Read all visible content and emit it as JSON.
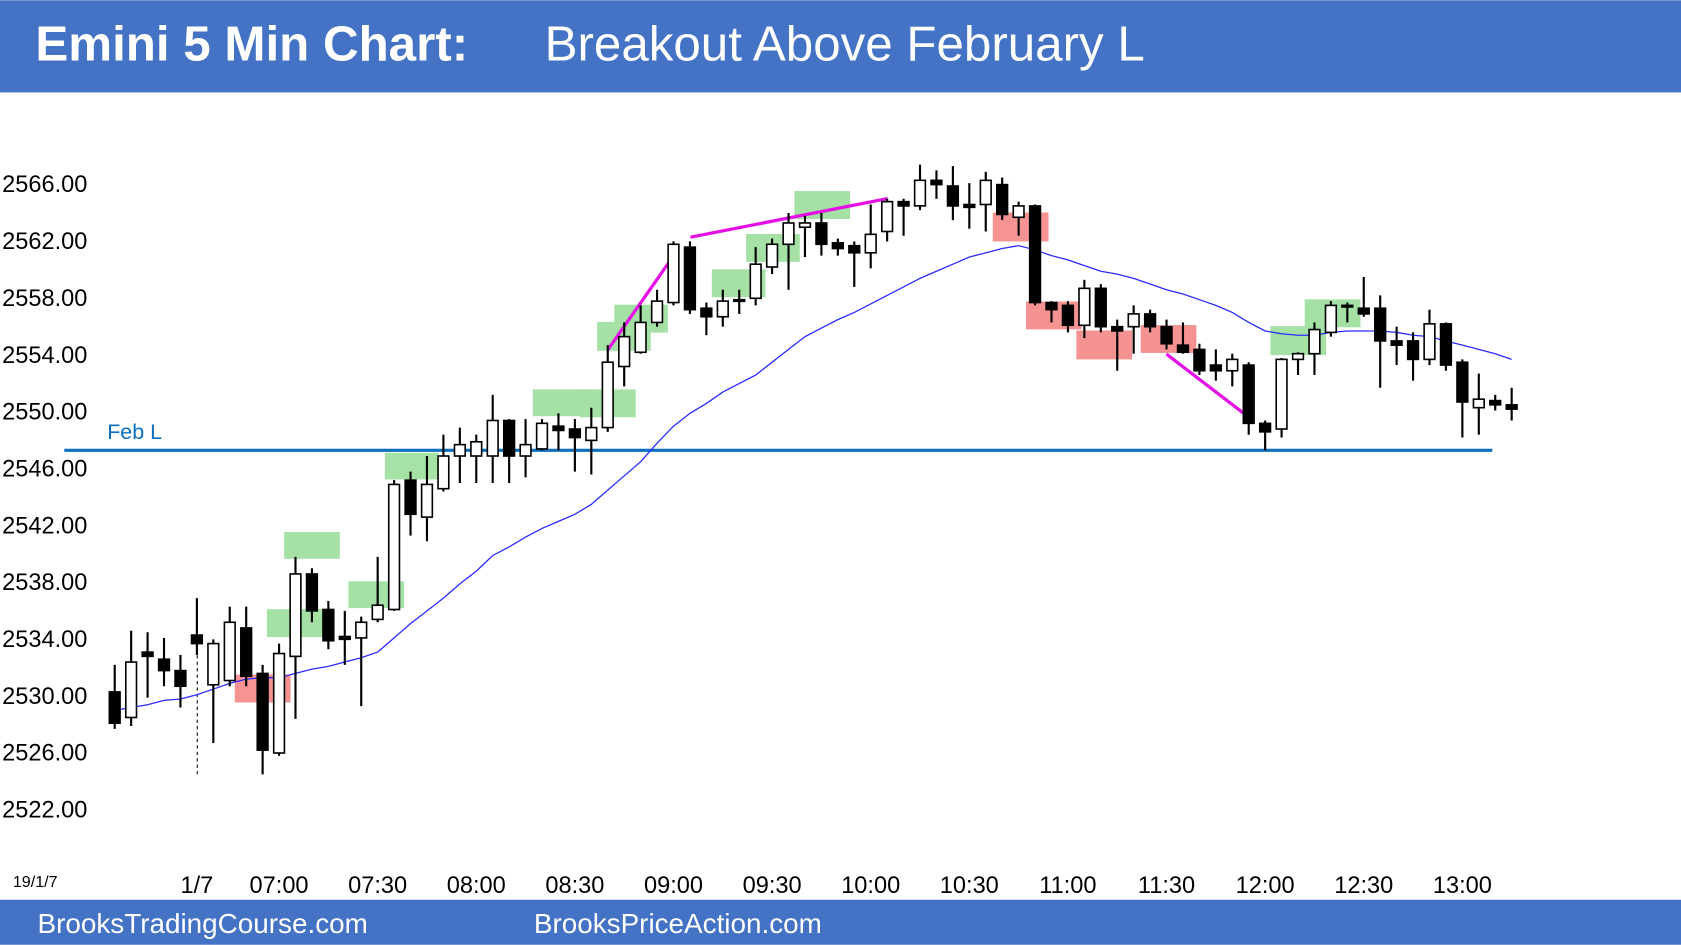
{
  "chart_data": {
    "type": "candlestick",
    "title": "Emini 5 Min Chart:",
    "subtitle": "Breakout Above February L",
    "date_label": "19/1/7",
    "footer": [
      "BrooksTradingCourse.com",
      "BrooksPriceAction.com"
    ],
    "categories": [
      null,
      null,
      null,
      null,
      null,
      "1/7",
      null,
      null,
      null,
      null,
      "07:00",
      null,
      null,
      null,
      null,
      null,
      "07:30",
      null,
      null,
      null,
      null,
      null,
      "08:00",
      null,
      null,
      null,
      null,
      null,
      "08:30",
      null,
      null,
      null,
      null,
      null,
      "09:00",
      null,
      null,
      null,
      null,
      null,
      "09:30",
      null,
      null,
      null,
      null,
      null,
      "10:00",
      null,
      null,
      null,
      null,
      null,
      "10:30",
      null,
      null,
      null,
      null,
      null,
      "11:00",
      null,
      null,
      null,
      null,
      null,
      "11:30",
      null,
      null,
      null,
      null,
      null,
      "12:00",
      null,
      null,
      null,
      null,
      null,
      "12:30",
      null,
      null,
      null,
      null,
      null,
      "13:00",
      null,
      null,
      null
    ],
    "open": [
      2530.4,
      2528.6,
      2533.2,
      2532.7,
      2531.9,
      2534.4,
      2530.9,
      2531.2,
      2534.9,
      2531.7,
      2526.1,
      2532.9,
      2538.7,
      2536.2,
      2534.3,
      2534.2,
      2535.5,
      2536.2,
      2545.3,
      2542.7,
      2544.7,
      2547.0,
      2547.0,
      2547.0,
      2549.5,
      2547.0,
      2547.5,
      2549.1,
      2548.9,
      2548.1,
      2549.0,
      2553.3,
      2554.3,
      2556.4,
      2557.8,
      2561.7,
      2557.4,
      2556.8,
      2557.9,
      2558.1,
      2560.3,
      2561.9,
      2563.1,
      2563.4,
      2562.0,
      2561.8,
      2561.3,
      2562.8,
      2564.9,
      2564.6,
      2566.4,
      2566.0,
      2564.7,
      2564.7,
      2566.1,
      2563.8,
      2564.6,
      2557.8,
      2557.6,
      2556.2,
      2558.8,
      2556.1,
      2556.1,
      2557.0,
      2556.1,
      2554.8,
      2554.5,
      2553.4,
      2553.0,
      2553.4,
      2549.3,
      2548.9,
      2553.8,
      2554.2,
      2555.7,
      2557.6,
      2557.4,
      2557.4,
      2555.1,
      2555.1,
      2553.8,
      2556.3,
      2553.6,
      2550.4,
      2550.9,
      2550.6
    ],
    "high": [
      2532.3,
      2534.7,
      2534.6,
      2534.2,
      2533.0,
      2537.0,
      2534.1,
      2536.4,
      2536.4,
      2532.3,
      2533.8,
      2539.9,
      2539.1,
      2536.8,
      2536.1,
      2535.7,
      2539.9,
      2545.3,
      2545.9,
      2547.0,
      2548.5,
      2549.0,
      2548.5,
      2551.3,
      2549.6,
      2549.6,
      2549.6,
      2550.0,
      2549.6,
      2550.4,
      2554.8,
      2556.4,
      2557.6,
      2558.7,
      2562.1,
      2562.1,
      2557.8,
      2558.7,
      2558.7,
      2561.7,
      2562.3,
      2564.1,
      2563.9,
      2564.1,
      2562.3,
      2562.1,
      2564.7,
      2565.1,
      2565.1,
      2567.5,
      2567.1,
      2567.4,
      2566.2,
      2567.0,
      2566.6,
      2564.9,
      2564.7,
      2557.9,
      2557.9,
      2559.4,
      2559.1,
      2556.6,
      2557.6,
      2557.3,
      2556.6,
      2556.4,
      2554.9,
      2554.5,
      2554.2,
      2553.6,
      2549.5,
      2553.9,
      2554.3,
      2556.4,
      2557.9,
      2557.8,
      2559.6,
      2558.3,
      2556.1,
      2555.7,
      2557.3,
      2556.4,
      2553.8,
      2552.8,
      2551.3,
      2551.8
    ],
    "low": [
      2527.8,
      2528.0,
      2530.0,
      2530.8,
      2529.3,
      2533.0,
      2526.8,
      2530.8,
      2530.8,
      2524.6,
      2525.9,
      2528.5,
      2535.3,
      2533.4,
      2532.3,
      2529.4,
      2535.3,
      2536.1,
      2541.4,
      2541.0,
      2544.5,
      2545.1,
      2545.1,
      2545.1,
      2545.1,
      2545.5,
      2547.4,
      2547.4,
      2545.9,
      2545.7,
      2548.7,
      2551.9,
      2554.2,
      2556.1,
      2557.6,
      2557.0,
      2555.5,
      2556.1,
      2557.0,
      2557.6,
      2559.8,
      2558.7,
      2561.0,
      2561.1,
      2561.1,
      2558.9,
      2560.2,
      2562.1,
      2562.5,
      2564.3,
      2565.1,
      2563.6,
      2563.0,
      2562.8,
      2563.6,
      2562.5,
      2557.6,
      2556.4,
      2555.7,
      2555.3,
      2555.7,
      2553.0,
      2554.2,
      2555.7,
      2554.5,
      2554.2,
      2552.7,
      2552.3,
      2551.9,
      2548.5,
      2547.4,
      2548.3,
      2552.7,
      2552.7,
      2555.4,
      2556.4,
      2556.8,
      2551.8,
      2553.4,
      2552.3,
      2553.4,
      2553.0,
      2548.3,
      2548.5,
      2550.2,
      2549.5
    ],
    "close": [
      2528.2,
      2532.5,
      2532.9,
      2531.9,
      2530.8,
      2533.8,
      2533.8,
      2535.3,
      2531.5,
      2526.3,
      2533.1,
      2538.7,
      2536.1,
      2534.0,
      2534.1,
      2535.3,
      2536.5,
      2545.0,
      2542.9,
      2545.0,
      2547.0,
      2547.8,
      2548.0,
      2549.5,
      2547.0,
      2547.8,
      2549.3,
      2548.8,
      2548.3,
      2549.0,
      2553.6,
      2555.4,
      2556.4,
      2557.9,
      2561.9,
      2557.3,
      2556.8,
      2557.9,
      2558.0,
      2560.5,
      2561.9,
      2563.4,
      2563.4,
      2561.9,
      2561.6,
      2561.3,
      2562.6,
      2564.9,
      2564.6,
      2566.4,
      2566.1,
      2564.6,
      2564.5,
      2566.4,
      2564.0,
      2564.6,
      2557.8,
      2557.3,
      2556.2,
      2558.8,
      2556.1,
      2555.8,
      2557.0,
      2556.1,
      2554.9,
      2554.3,
      2553.0,
      2553.0,
      2553.8,
      2549.3,
      2548.7,
      2553.8,
      2554.2,
      2555.9,
      2557.6,
      2557.5,
      2557.0,
      2555.1,
      2554.8,
      2553.8,
      2556.3,
      2553.4,
      2550.8,
      2551.0,
      2550.6,
      2550.3
    ],
    "up_color": "#ffffff",
    "down_color": "#000000",
    "ema": {
      "color": "#2b2bff",
      "values": [
        2529.1,
        2529.3,
        2529.5,
        2529.8,
        2529.9,
        2530.2,
        2530.6,
        2531.0,
        2531.3,
        2531.4,
        2531.4,
        2531.7,
        2532.0,
        2532.2,
        2532.5,
        2532.8,
        2533.2,
        2534.2,
        2535.2,
        2536.1,
        2537.0,
        2538.0,
        2538.9,
        2540.0,
        2540.6,
        2541.3,
        2541.9,
        2542.4,
        2542.9,
        2543.6,
        2544.6,
        2545.6,
        2546.6,
        2547.9,
        2549.1,
        2550.0,
        2550.7,
        2551.5,
        2552.1,
        2552.7,
        2553.6,
        2554.5,
        2555.4,
        2556.0,
        2556.6,
        2557.1,
        2557.7,
        2558.3,
        2558.9,
        2559.5,
        2560.0,
        2560.5,
        2561.0,
        2561.3,
        2561.6,
        2561.8,
        2561.5,
        2561.1,
        2560.8,
        2560.4,
        2560.0,
        2559.8,
        2559.5,
        2559.1,
        2558.7,
        2558.4,
        2558.0,
        2557.6,
        2557.1,
        2556.4,
        2555.8,
        2555.6,
        2555.5,
        2555.5,
        2555.7,
        2555.8,
        2555.8,
        2555.8,
        2555.7,
        2555.5,
        2555.4,
        2555.1,
        2554.8,
        2554.5,
        2554.2,
        2553.8
      ]
    },
    "annotations": [
      {
        "label": "Feb L",
        "value": 2547.4,
        "color": "#0b6fbf"
      }
    ],
    "ylim": [
      2520,
      2571
    ],
    "yticks": [
      {
        "value": 2522,
        "label": "2522.00"
      },
      {
        "value": 2526,
        "label": "2526.00"
      },
      {
        "value": 2530,
        "label": "2530.00"
      },
      {
        "value": 2534,
        "label": "2534.00"
      },
      {
        "value": 2538,
        "label": "2538.00"
      },
      {
        "value": 2542,
        "label": "2542.00"
      },
      {
        "value": 2546,
        "label": "2546.00"
      },
      {
        "value": 2550,
        "label": "2550.00"
      },
      {
        "value": 2554,
        "label": "2554.00"
      },
      {
        "value": 2558,
        "label": "2558.00"
      },
      {
        "value": 2562,
        "label": "2562.00"
      },
      {
        "value": 2566,
        "label": "2566.00"
      }
    ],
    "grid": false
  }
}
